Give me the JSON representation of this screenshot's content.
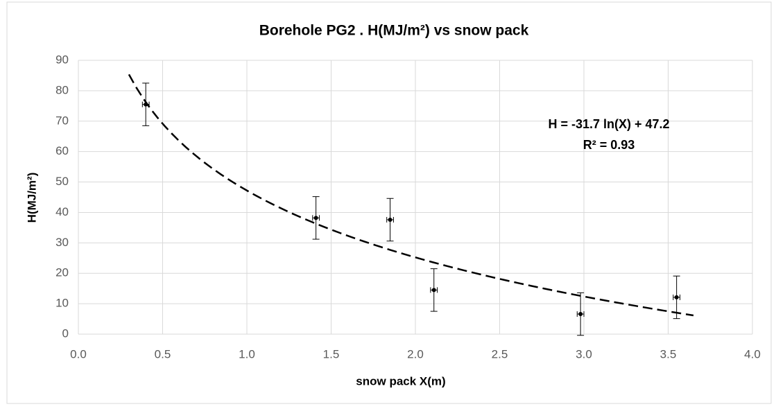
{
  "chart_data": {
    "type": "scatter",
    "title": "Borehole PG2 . H(MJ/m²) vs snow pack",
    "xlabel": "snow pack X(m)",
    "ylabel": "H(MJ/m²)",
    "x": [
      0.4,
      1.41,
      1.85,
      2.11,
      2.98,
      3.55
    ],
    "values": [
      75.5,
      38.2,
      37.6,
      14.5,
      6.6,
      12.1
    ],
    "yerr": [
      7,
      7,
      7,
      7,
      7,
      7
    ],
    "xerr": [
      0.02,
      0.02,
      0.02,
      0.02,
      0.02,
      0.02
    ],
    "color": "#000000",
    "xlim": [
      0,
      4
    ],
    "ylim": [
      0,
      90
    ],
    "xticks": [
      {
        "value": 0,
        "label": "0.0"
      },
      {
        "value": 0.5,
        "label": "0.5"
      },
      {
        "value": 1,
        "label": "1.0"
      },
      {
        "value": 1.5,
        "label": "1.5"
      },
      {
        "value": 2,
        "label": "2.0"
      },
      {
        "value": 2.5,
        "label": "2.5"
      },
      {
        "value": 3,
        "label": "3.0"
      },
      {
        "value": 3.5,
        "label": "3.5"
      },
      {
        "value": 4,
        "label": "4.0"
      }
    ],
    "yticks": [
      0,
      10,
      20,
      30,
      40,
      50,
      60,
      70,
      80,
      90
    ],
    "grid": true,
    "trendline": {
      "type": "log",
      "coefficients": [
        -31.7,
        47.2
      ],
      "xlim": [
        0.3,
        3.65
      ],
      "label": "H = -31.7 ln(X) + 47.2",
      "r2_label": "R² = 0.93"
    }
  }
}
